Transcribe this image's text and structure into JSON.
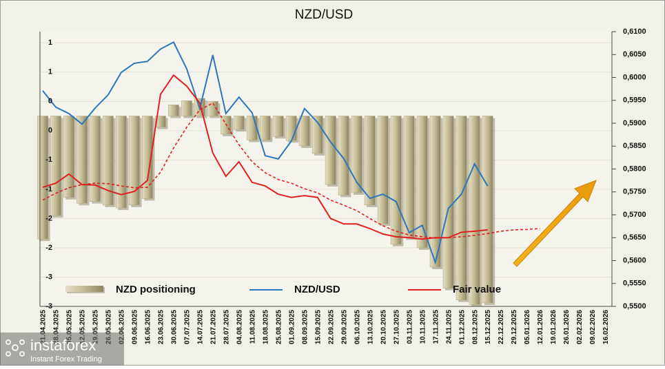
{
  "chart_data": {
    "type": "bar",
    "title": "NZD/USD",
    "categories": [
      "21.04.2025",
      "28.04.2025",
      "05.05.2025",
      "12.05.2025",
      "19.05.2025",
      "26.05.2025",
      "02.06.2025",
      "09.06.2025",
      "16.06.2025",
      "23.06.2025",
      "30.06.2025",
      "07.07.2025",
      "14.07.2025",
      "21.07.2025",
      "28.07.2025",
      "04.08.2025",
      "11.08.2025",
      "18.08.2025",
      "25.08.2025",
      "01.09.2025",
      "08.09.2025",
      "15.09.2025",
      "22.09.2025",
      "29.09.2025",
      "06.10.2025",
      "13.10.2025",
      "20.10.2025",
      "27.10.2025",
      "03.11.2025",
      "10.11.2025",
      "17.11.2025",
      "24.11.2025",
      "01.12.2025",
      "08.12.2025",
      "15.12.2025",
      "22.12.2025",
      "29.12.2025",
      "05.01.2026",
      "12.01.2026",
      "19.01.2026",
      "26.01.2026",
      "02.02.2026",
      "09.02.2026",
      "16.02.2026"
    ],
    "series": [
      {
        "name": "NZD positioning",
        "type": "bar",
        "color": "#b5ad86",
        "values": [
          -2.1,
          -1.7,
          -1.39,
          -1.49,
          -1.46,
          -1.52,
          -1.57,
          -1.52,
          -1.41,
          -0.19,
          0.19,
          0.26,
          0.3,
          0.25,
          -0.31,
          -0.23,
          -0.41,
          -0.41,
          -0.35,
          -0.42,
          -0.51,
          -0.64,
          -1.17,
          -1.35,
          -1.31,
          -1.52,
          -1.84,
          -2.19,
          -2.08,
          -2.25,
          -2.58,
          -2.94,
          -3.14,
          -3.22,
          -3.19,
          null,
          null,
          null,
          null,
          null,
          null,
          null,
          null,
          null
        ]
      },
      {
        "name": "NZD/USD",
        "type": "line",
        "axis": "y2",
        "color": "#2e75c0",
        "values": [
          0.5971,
          0.5935,
          0.5921,
          0.5898,
          0.5933,
          0.5962,
          0.6011,
          0.6031,
          0.6035,
          0.6062,
          0.6077,
          0.6019,
          0.5932,
          0.6049,
          0.5921,
          0.5957,
          0.5923,
          0.5829,
          0.5822,
          0.5861,
          0.5932,
          0.5902,
          0.5859,
          0.5823,
          0.5771,
          0.5736,
          0.5745,
          0.5729,
          0.5661,
          0.5677,
          0.5596,
          0.5714,
          0.5745,
          0.5811,
          0.5763,
          null,
          null,
          null,
          null,
          null,
          null,
          null,
          null,
          null
        ]
      },
      {
        "name": "Fair value",
        "type": "line",
        "axis": "y2",
        "color": "#e02020",
        "values": [
          0.576,
          0.5769,
          0.5789,
          0.5766,
          0.5765,
          0.5753,
          0.5744,
          0.5751,
          0.5775,
          0.5963,
          0.6005,
          0.5981,
          0.5944,
          0.5835,
          0.5784,
          0.5816,
          0.5771,
          0.5763,
          0.5745,
          0.5738,
          0.5742,
          0.5738,
          0.5692,
          0.568,
          0.568,
          0.567,
          0.5658,
          0.5652,
          0.565,
          0.5647,
          0.565,
          0.565,
          0.5662,
          0.5664,
          0.5667,
          null,
          null,
          null,
          null,
          null,
          null,
          null,
          null,
          null
        ]
      },
      {
        "type": "line",
        "axis": "y2",
        "color": "#e02020",
        "dashed": true,
        "values": [
          0.5732,
          0.5747,
          0.5759,
          0.5766,
          0.5769,
          0.5768,
          0.5763,
          0.5759,
          0.576,
          0.5793,
          0.5846,
          0.5891,
          0.5929,
          0.5944,
          0.5898,
          0.5853,
          0.5816,
          0.5792,
          0.5777,
          0.5769,
          0.5757,
          0.5748,
          0.5732,
          0.5721,
          0.5709,
          0.5692,
          0.5676,
          0.5664,
          0.5656,
          0.5652,
          0.5649,
          0.565,
          0.5652,
          0.5655,
          0.5659,
          0.5664,
          0.5667,
          0.5668,
          0.567,
          null,
          null,
          null,
          null,
          null
        ]
      }
    ],
    "ylim": [
      -3.25,
      1.44
    ],
    "yticks": [
      {
        "value": 1.25,
        "label": "1"
      },
      {
        "value": 0.75,
        "label": "1"
      },
      {
        "value": 0.25,
        "label": "0"
      },
      {
        "value": -0.25,
        "label": "0"
      },
      {
        "value": -0.75,
        "label": "-1"
      },
      {
        "value": -1.25,
        "label": "-1"
      },
      {
        "value": -1.75,
        "label": "-2"
      },
      {
        "value": -2.25,
        "label": "-2"
      },
      {
        "value": -2.75,
        "label": "-3"
      },
      {
        "value": -3.25,
        "label": "-3"
      }
    ],
    "y2lim": [
      0.55,
      0.61
    ],
    "y2ticks": [
      {
        "value": 0.61,
        "label": "0,6100"
      },
      {
        "value": 0.605,
        "label": "0,6050"
      },
      {
        "value": 0.6,
        "label": "0,6000"
      },
      {
        "value": 0.595,
        "label": "0,5950"
      },
      {
        "value": 0.59,
        "label": "0,5900"
      },
      {
        "value": 0.585,
        "label": "0,5850"
      },
      {
        "value": 0.58,
        "label": "0,5800"
      },
      {
        "value": 0.575,
        "label": "0,5750"
      },
      {
        "value": 0.57,
        "label": "0,5700"
      },
      {
        "value": 0.565,
        "label": "0,5650"
      },
      {
        "value": 0.56,
        "label": "0,5600"
      },
      {
        "value": 0.555,
        "label": "0,5550"
      },
      {
        "value": 0.55,
        "label": "0,5500"
      }
    ],
    "grid": true,
    "legend": "bottom"
  },
  "watermark": {
    "brand": "instaforex",
    "tagline": "Instant Forex Trading"
  }
}
